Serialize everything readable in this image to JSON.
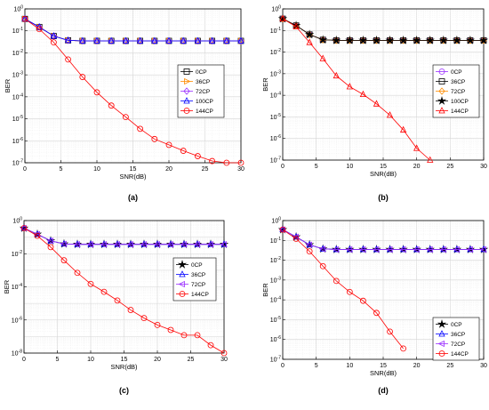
{
  "chart_data": [
    {
      "type": "line",
      "panel_label": "(a)",
      "xlabel": "SNR(dB)",
      "ylabel": "BER",
      "xlim": [
        0,
        30
      ],
      "ylim": [
        1e-07,
        1
      ],
      "yscale": "log",
      "grid": true,
      "legend_position": "center-right",
      "x_ticks": [
        0,
        5,
        10,
        15,
        20,
        25,
        30
      ],
      "y_tick_exponents": [
        0,
        -1,
        -2,
        -3,
        -4,
        -5,
        -6,
        -7
      ],
      "series": [
        {
          "name": "0CP",
          "color": "#000000",
          "marker": "square",
          "x": [
            0,
            2,
            4,
            6,
            8,
            10,
            12,
            14,
            16,
            18,
            20,
            22,
            24,
            26,
            28,
            30
          ],
          "y": [
            0.35,
            0.15,
            0.058,
            0.037,
            0.035,
            0.035,
            0.035,
            0.035,
            0.035,
            0.035,
            0.035,
            0.035,
            0.035,
            0.035,
            0.035,
            0.035
          ]
        },
        {
          "name": "36CP",
          "color": "#ff8c00",
          "marker": "triangle-right",
          "x": [
            0,
            2,
            4,
            6,
            8,
            10,
            12,
            14,
            16,
            18,
            20,
            22,
            24,
            26,
            28,
            30
          ],
          "y": [
            0.35,
            0.15,
            0.058,
            0.037,
            0.035,
            0.035,
            0.035,
            0.035,
            0.035,
            0.035,
            0.035,
            0.035,
            0.035,
            0.035,
            0.035,
            0.035
          ]
        },
        {
          "name": "72CP",
          "color": "#9b30ff",
          "marker": "diamond",
          "x": [
            0,
            2,
            4,
            6,
            8,
            10,
            12,
            14,
            16,
            18,
            20,
            22,
            24,
            26,
            28,
            30
          ],
          "y": [
            0.35,
            0.15,
            0.058,
            0.037,
            0.035,
            0.035,
            0.035,
            0.035,
            0.035,
            0.035,
            0.035,
            0.035,
            0.035,
            0.035,
            0.035,
            0.035
          ]
        },
        {
          "name": "100CP",
          "color": "#0000ff",
          "marker": "triangle-up",
          "x": [
            0,
            2,
            4,
            6,
            8,
            10,
            12,
            14,
            16,
            18,
            20,
            22,
            24,
            26,
            28,
            30
          ],
          "y": [
            0.35,
            0.15,
            0.058,
            0.037,
            0.035,
            0.035,
            0.035,
            0.035,
            0.035,
            0.035,
            0.035,
            0.035,
            0.035,
            0.035,
            0.035,
            0.035
          ]
        },
        {
          "name": "144CP",
          "color": "#ff0000",
          "marker": "circle",
          "x": [
            0,
            2,
            4,
            6,
            8,
            10,
            12,
            14,
            16,
            18,
            20,
            22,
            24,
            26,
            28,
            30
          ],
          "y": [
            0.35,
            0.12,
            0.03,
            0.005,
            0.0008,
            0.00016,
            4e-05,
            1.2e-05,
            3.5e-06,
            1.2e-06,
            6.5e-07,
            3.5e-07,
            2e-07,
            1.2e-07,
            8e-08,
            5e-08
          ]
        }
      ]
    },
    {
      "type": "line",
      "panel_label": "(b)",
      "xlabel": "SNR(dB)",
      "ylabel": "BER",
      "xlim": [
        0,
        30
      ],
      "ylim": [
        1e-07,
        1
      ],
      "yscale": "log",
      "grid": true,
      "legend_position": "center-right",
      "x_ticks": [
        0,
        5,
        10,
        15,
        20,
        25,
        30
      ],
      "y_tick_exponents": [
        0,
        -1,
        -2,
        -3,
        -4,
        -5,
        -6,
        -7
      ],
      "series": [
        {
          "name": "0CP",
          "color": "#9b30ff",
          "marker": "circle",
          "x": [
            0,
            2,
            4,
            6,
            8,
            10,
            12,
            14,
            16,
            18,
            20,
            22,
            24,
            26,
            28,
            30
          ],
          "y": [
            0.35,
            0.17,
            0.065,
            0.037,
            0.035,
            0.035,
            0.035,
            0.035,
            0.035,
            0.035,
            0.035,
            0.035,
            0.035,
            0.035,
            0.035,
            0.035
          ]
        },
        {
          "name": "36CP",
          "color": "#000000",
          "marker": "square",
          "x": [
            0,
            2,
            4,
            6,
            8,
            10,
            12,
            14,
            16,
            18,
            20,
            22,
            24,
            26,
            28,
            30
          ],
          "y": [
            0.35,
            0.17,
            0.065,
            0.037,
            0.035,
            0.035,
            0.035,
            0.035,
            0.035,
            0.035,
            0.035,
            0.035,
            0.035,
            0.035,
            0.035,
            0.035
          ]
        },
        {
          "name": "72CP",
          "color": "#ff8c00",
          "marker": "diamond",
          "x": [
            0,
            2,
            4,
            6,
            8,
            10,
            12,
            14,
            16,
            18,
            20,
            22,
            24,
            26,
            28,
            30
          ],
          "y": [
            0.35,
            0.17,
            0.065,
            0.037,
            0.035,
            0.035,
            0.035,
            0.035,
            0.035,
            0.035,
            0.035,
            0.035,
            0.035,
            0.035,
            0.035,
            0.035
          ]
        },
        {
          "name": "100CP",
          "color": "#000000",
          "marker": "star",
          "x": [
            0,
            2,
            4,
            6,
            8,
            10,
            12,
            14,
            16,
            18,
            20,
            22,
            24,
            26,
            28,
            30
          ],
          "y": [
            0.35,
            0.17,
            0.065,
            0.037,
            0.035,
            0.035,
            0.035,
            0.035,
            0.035,
            0.035,
            0.035,
            0.035,
            0.035,
            0.035,
            0.035,
            0.035
          ]
        },
        {
          "name": "144CP",
          "color": "#ff0000",
          "marker": "triangle-up",
          "x": [
            0,
            2,
            4,
            6,
            8,
            10,
            12,
            14,
            16,
            18,
            20,
            22
          ],
          "y": [
            0.35,
            0.15,
            0.028,
            0.005,
            0.0008,
            0.00025,
            0.00011,
            4e-05,
            1.2e-05,
            2.5e-06,
            3.5e-07,
            5e-08
          ]
        }
      ]
    },
    {
      "type": "line",
      "panel_label": "(c)",
      "xlabel": "SNR(dB)",
      "ylabel": "BER",
      "xlim": [
        0,
        30
      ],
      "ylim": [
        1e-08,
        1
      ],
      "yscale": "log",
      "grid": true,
      "legend_position": "center-right",
      "x_ticks": [
        0,
        5,
        10,
        15,
        20,
        25,
        30
      ],
      "y_tick_exponents": [
        0,
        -2,
        -4,
        -6,
        -8
      ],
      "series": [
        {
          "name": "0CP",
          "color": "#000000",
          "marker": "star",
          "x": [
            0,
            2,
            4,
            6,
            8,
            10,
            12,
            14,
            16,
            18,
            20,
            22,
            24,
            26,
            28,
            30
          ],
          "y": [
            0.35,
            0.15,
            0.06,
            0.039,
            0.037,
            0.037,
            0.037,
            0.037,
            0.037,
            0.037,
            0.037,
            0.037,
            0.037,
            0.037,
            0.037,
            0.037
          ]
        },
        {
          "name": "36CP",
          "color": "#0000ff",
          "marker": "triangle-up",
          "x": [
            0,
            2,
            4,
            6,
            8,
            10,
            12,
            14,
            16,
            18,
            20,
            22,
            24,
            26,
            28,
            30
          ],
          "y": [
            0.35,
            0.15,
            0.06,
            0.039,
            0.037,
            0.037,
            0.037,
            0.037,
            0.037,
            0.037,
            0.037,
            0.037,
            0.037,
            0.037,
            0.037,
            0.037
          ]
        },
        {
          "name": "72CP",
          "color": "#9b30ff",
          "marker": "triangle-left",
          "x": [
            0,
            2,
            4,
            6,
            8,
            10,
            12,
            14,
            16,
            18,
            20,
            22,
            24,
            26,
            28,
            30
          ],
          "y": [
            0.35,
            0.15,
            0.06,
            0.039,
            0.037,
            0.037,
            0.037,
            0.037,
            0.037,
            0.037,
            0.037,
            0.037,
            0.037,
            0.037,
            0.037,
            0.037
          ]
        },
        {
          "name": "144CP",
          "color": "#ff0000",
          "marker": "circle",
          "x": [
            0,
            2,
            4,
            6,
            8,
            10,
            12,
            14,
            16,
            18,
            20,
            22,
            24,
            26,
            28,
            30
          ],
          "y": [
            0.35,
            0.12,
            0.025,
            0.004,
            0.0007,
            0.00015,
            5e-05,
            1.5e-05,
            4e-06,
            1.3e-06,
            5e-07,
            2.5e-07,
            1.2e-07,
            1.2e-07,
            3e-08,
            8e-09
          ]
        }
      ]
    },
    {
      "type": "line",
      "panel_label": "(d)",
      "xlabel": "SNR(dB)",
      "ylabel": "BER",
      "xlim": [
        0,
        30
      ],
      "ylim": [
        1e-07,
        1
      ],
      "yscale": "log",
      "grid": true,
      "legend_position": "bottom-right",
      "x_ticks": [
        0,
        5,
        10,
        15,
        20,
        25,
        30
      ],
      "y_tick_exponents": [
        0,
        -1,
        -2,
        -3,
        -4,
        -5,
        -6,
        -7
      ],
      "series": [
        {
          "name": "0CP",
          "color": "#000000",
          "marker": "star",
          "x": [
            0,
            2,
            4,
            6,
            8,
            10,
            12,
            14,
            16,
            18,
            20,
            22,
            24,
            26,
            28,
            30
          ],
          "y": [
            0.35,
            0.15,
            0.06,
            0.037,
            0.035,
            0.035,
            0.035,
            0.035,
            0.035,
            0.035,
            0.035,
            0.035,
            0.035,
            0.035,
            0.035,
            0.035
          ]
        },
        {
          "name": "36CP",
          "color": "#0000ff",
          "marker": "triangle-up",
          "x": [
            0,
            2,
            4,
            6,
            8,
            10,
            12,
            14,
            16,
            18,
            20,
            22,
            24,
            26,
            28,
            30
          ],
          "y": [
            0.35,
            0.15,
            0.06,
            0.037,
            0.035,
            0.035,
            0.035,
            0.035,
            0.035,
            0.035,
            0.035,
            0.035,
            0.035,
            0.035,
            0.035,
            0.035
          ]
        },
        {
          "name": "72CP",
          "color": "#9b30ff",
          "marker": "triangle-left",
          "x": [
            0,
            2,
            4,
            6,
            8,
            10,
            12,
            14,
            16,
            18,
            20,
            22,
            24,
            26,
            28,
            30
          ],
          "y": [
            0.35,
            0.15,
            0.06,
            0.037,
            0.035,
            0.035,
            0.035,
            0.035,
            0.035,
            0.035,
            0.035,
            0.035,
            0.035,
            0.035,
            0.035,
            0.035
          ]
        },
        {
          "name": "144CP",
          "color": "#ff0000",
          "marker": "circle",
          "x": [
            0,
            2,
            4,
            6,
            8,
            10,
            12,
            14,
            16,
            18
          ],
          "y": [
            0.35,
            0.12,
            0.028,
            0.005,
            0.0009,
            0.00025,
            9e-05,
            2.2e-05,
            2.5e-06,
            3.5e-07
          ]
        }
      ]
    }
  ]
}
